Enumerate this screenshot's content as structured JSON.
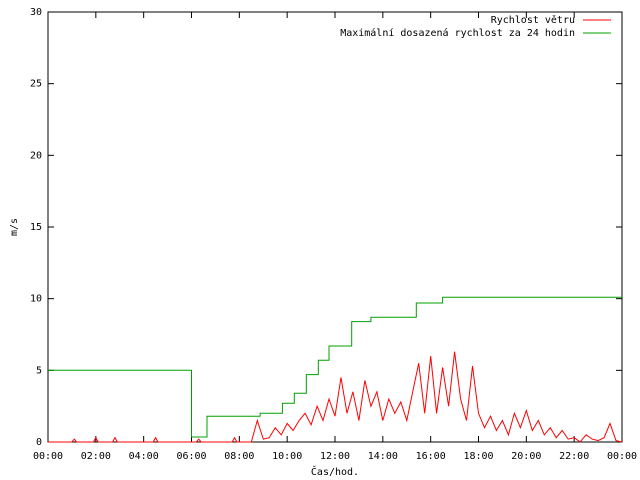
{
  "chart_data": {
    "type": "line",
    "xlabel": "Čas/hod.",
    "ylabel": "m/s",
    "xlim": [
      0,
      24
    ],
    "ylim": [
      0,
      30
    ],
    "xticks": [
      {
        "value": 0,
        "label": "00:00"
      },
      {
        "value": 2,
        "label": "02:00"
      },
      {
        "value": 4,
        "label": "04:00"
      },
      {
        "value": 6,
        "label": "06:00"
      },
      {
        "value": 8,
        "label": "08:00"
      },
      {
        "value": 10,
        "label": "10:00"
      },
      {
        "value": 12,
        "label": "12:00"
      },
      {
        "value": 14,
        "label": "14:00"
      },
      {
        "value": 16,
        "label": "16:00"
      },
      {
        "value": 18,
        "label": "18:00"
      },
      {
        "value": 20,
        "label": "20:00"
      },
      {
        "value": 22,
        "label": "22:00"
      },
      {
        "value": 24,
        "label": "00:00"
      }
    ],
    "yticks": [
      0,
      5,
      10,
      15,
      20,
      25,
      30
    ],
    "legend": "top-right",
    "series": [
      {
        "name": "Rychlost větru",
        "color": "#ff0000",
        "x": [
          0,
          1,
          1.1,
          1.2,
          1.9,
          2,
          2.1,
          2.7,
          2.8,
          2.9,
          4.4,
          4.5,
          4.6,
          6.2,
          6.3,
          6.4,
          7.7,
          7.8,
          7.9,
          8.5,
          8.75,
          9.0,
          9.25,
          9.5,
          9.75,
          10.0,
          10.25,
          10.5,
          10.75,
          11.0,
          11.25,
          11.5,
          11.75,
          12.0,
          12.25,
          12.5,
          12.75,
          13.0,
          13.25,
          13.5,
          13.75,
          14.0,
          14.25,
          14.5,
          14.75,
          15.0,
          15.25,
          15.5,
          15.75,
          16.0,
          16.25,
          16.5,
          16.75,
          17.0,
          17.25,
          17.5,
          17.75,
          18.0,
          18.25,
          18.5,
          18.75,
          19.0,
          19.25,
          19.5,
          19.75,
          20.0,
          20.25,
          20.5,
          20.75,
          21.0,
          21.25,
          21.5,
          21.75,
          22.0,
          22.25,
          22.5,
          22.75,
          23.0,
          23.25,
          23.5,
          23.75,
          24
        ],
        "values": [
          0,
          0,
          0.2,
          0,
          0,
          0.3,
          0,
          0,
          0.3,
          0,
          0,
          0.3,
          0,
          0,
          0.2,
          0,
          0,
          0.3,
          0,
          0,
          1.5,
          0.2,
          0.3,
          1.0,
          0.5,
          1.3,
          0.8,
          1.5,
          2.0,
          1.2,
          2.5,
          1.5,
          3.0,
          1.8,
          4.5,
          2.0,
          3.5,
          1.5,
          4.3,
          2.5,
          3.5,
          1.5,
          3.0,
          2.0,
          2.8,
          1.5,
          3.5,
          5.5,
          2.0,
          6.0,
          2.0,
          5.2,
          2.5,
          6.3,
          3.0,
          1.5,
          5.3,
          2.0,
          1.0,
          1.8,
          0.8,
          1.5,
          0.5,
          2.0,
          1.0,
          2.2,
          0.8,
          1.5,
          0.5,
          1.0,
          0.3,
          0.8,
          0.2,
          0.3,
          0,
          0.5,
          0.2,
          0.1,
          0.3,
          1.3,
          0.1,
          0
        ]
      },
      {
        "name": "Maximální dosazená rychlost za 24 hodin",
        "color": "#00a000",
        "x": [
          0,
          6.0,
          6.0,
          6.65,
          6.65,
          8.87,
          8.87,
          9.8,
          9.8,
          10.3,
          10.3,
          10.8,
          10.8,
          11.3,
          11.3,
          11.75,
          11.75,
          12.7,
          12.7,
          13.5,
          13.5,
          15.4,
          15.4,
          16.5,
          16.5,
          24
        ],
        "values": [
          5.0,
          5.0,
          0.35,
          0.35,
          1.8,
          1.8,
          2.0,
          2.0,
          2.7,
          2.7,
          3.4,
          3.4,
          4.7,
          4.7,
          5.7,
          5.7,
          6.7,
          6.7,
          8.4,
          8.4,
          8.7,
          8.7,
          9.7,
          9.7,
          10.1,
          10.1
        ]
      }
    ]
  }
}
